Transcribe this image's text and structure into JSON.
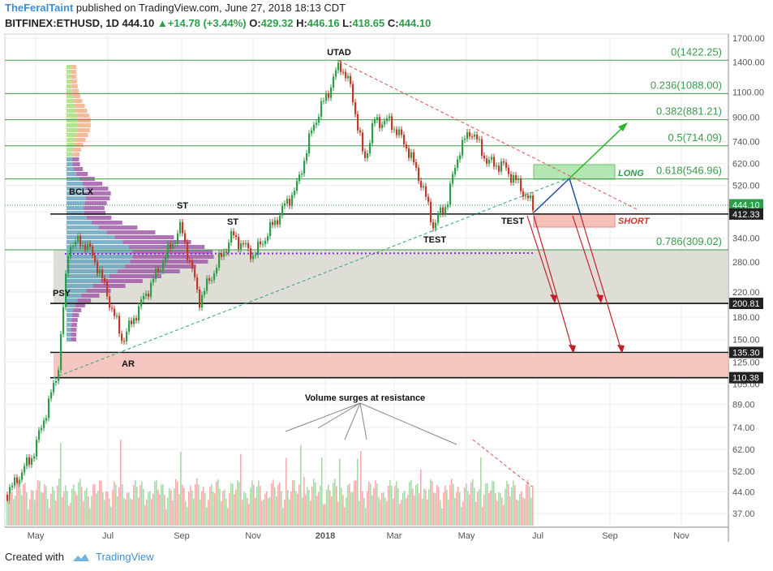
{
  "header": {
    "author": "TheFeralTaint",
    "published": "published on TradingView.com, June 27, 2018 18:13 CDT",
    "symbol": "BITFINEX:ETHUSD, 1D",
    "last": "444.10",
    "change": "+14.78 (+3.44%)",
    "o_label": "O:",
    "o": "429.32",
    "h_label": "H:",
    "h": "446.16",
    "l_label": "L:",
    "l": "418.65",
    "c_label": "C:",
    "c": "444.10"
  },
  "footer": {
    "created_with": "Created with",
    "brand": "TradingView"
  },
  "colors": {
    "up": "#2e9d4a",
    "down": "#c0392b",
    "fib": "#3b9b4a",
    "grid": "#eeeeee",
    "accent": "#3c8fd6",
    "short": "#c0392b",
    "long": "#33aa33"
  },
  "chart_data": {
    "type": "candlestick",
    "price_axis_ticks": [
      "1700.00",
      "1400.00",
      "1100.00",
      "900.00",
      "740.00",
      "620.00",
      "520.00",
      "420.00",
      "340.00",
      "280.00",
      "220.00",
      "180.00",
      "150.00",
      "125.00",
      "105.00",
      "89.00",
      "74.00",
      "62.00",
      "52.00",
      "44.00",
      "37.00"
    ],
    "time_axis_ticks": [
      "May",
      "Jul",
      "Sep",
      "Nov",
      "2018",
      "Mar",
      "May",
      "Jul",
      "Sep",
      "Nov"
    ],
    "price_scale": "log",
    "price_badges": [
      {
        "value": "444.10",
        "color": "#2e9d4a"
      },
      {
        "value": "412.33",
        "color": "#222222"
      },
      {
        "value": "200.81",
        "color": "#222222"
      },
      {
        "value": "135.30",
        "color": "#222222"
      },
      {
        "value": "110.38",
        "color": "#222222"
      }
    ],
    "fib_levels": [
      {
        "ratio": "0",
        "price": 1422.25,
        "label": "0(1422.25)"
      },
      {
        "ratio": "0.236",
        "price": 1088.0,
        "label": "0.236(1088.00)"
      },
      {
        "ratio": "0.382",
        "price": 881.21,
        "label": "0.382(881.21)"
      },
      {
        "ratio": "0.5",
        "price": 714.09,
        "label": "0.5(714.09)"
      },
      {
        "ratio": "0.618",
        "price": 546.96,
        "label": "0.618(546.96)"
      },
      {
        "ratio": "0.786",
        "price": 309.02,
        "label": "0.786(309.02)"
      }
    ],
    "horizontal_lines": [
      412.33,
      200.81,
      135.3,
      110.38
    ],
    "annotations": [
      {
        "text": "UTAD"
      },
      {
        "text": "ST"
      },
      {
        "text": "ST"
      },
      {
        "text": "BCLX"
      },
      {
        "text": "PSY"
      },
      {
        "text": "AR"
      },
      {
        "text": "TEST"
      },
      {
        "text": "TEST"
      },
      {
        "text": "LONG"
      },
      {
        "text": "SHORT"
      },
      {
        "text": "Volume surges at resistance"
      }
    ]
  }
}
